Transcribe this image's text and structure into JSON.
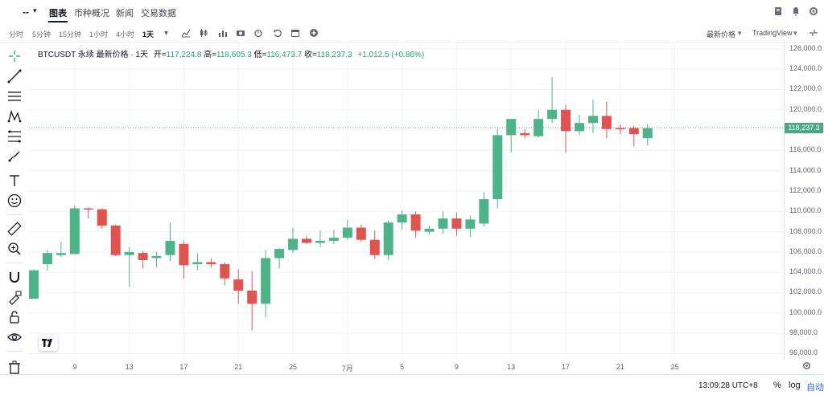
{
  "header": {
    "symbol_short": "--",
    "tabs": [
      {
        "label": "图表",
        "active": true
      },
      {
        "label": "币种概况",
        "active": false
      },
      {
        "label": "新闻",
        "active": false
      },
      {
        "label": "交易数据",
        "active": false
      }
    ],
    "right_icons": [
      "document-icon",
      "bell-icon",
      "settings-icon",
      "fullscreen-icon"
    ]
  },
  "toolbar": {
    "intervals": [
      "分时",
      "5分钟",
      "15分钟",
      "1小时",
      "4小时",
      "1天"
    ],
    "active_interval": "1天",
    "icons": [
      "indicators-icon",
      "candle-type-icon",
      "camera-icon",
      "alarm-icon",
      "undo-icon",
      "calendar-icon",
      "add-icon"
    ],
    "price_type": "最新价格",
    "provider": "TradingView"
  },
  "left_tools": [
    "crosshair-icon",
    "trend-line-icon",
    "horizontal-lines-icon",
    "pattern-icon",
    "fib-icon",
    "brush-icon",
    "text-icon",
    "emoji-icon",
    "ruler-icon",
    "zoom-icon",
    "magnet-icon",
    "lock-drawing-icon",
    "lock-icon",
    "eye-icon",
    "trash-icon"
  ],
  "legend": {
    "title": "BTCUSDT 永续 最新价格 · 1天",
    "open_label": "开=",
    "open": "117,224.8",
    "high_label": "高=",
    "high": "118,605.3",
    "low_label": "低=",
    "low": "116,473.7",
    "close_label": "收=",
    "close": "118,237.3",
    "change": "+1,012.5 (+0.86%)"
  },
  "last_price_tag": "118,237.3",
  "colors": {
    "up": "#4fb38a",
    "down": "#e0544f",
    "grid": "#f0f3fa",
    "last_line": "#4aa789"
  },
  "chart_data": {
    "type": "candlestick",
    "y_ticks": [
      "126,000.0",
      "124,000.0",
      "122,000.0",
      "120,000.0",
      "118,000.0",
      "116,000.0",
      "114,000.0",
      "112,000.0",
      "110,000.0",
      "108,000.0",
      "106,000.0",
      "104,000.0",
      "102,000.0",
      "100,000.0",
      "98,000.0",
      "96,000.0"
    ],
    "ylim": [
      95400,
      126700
    ],
    "x_ticks": [
      "9",
      "13",
      "17",
      "21",
      "25",
      "7月",
      "5",
      "9",
      "13",
      "17",
      "21",
      "25"
    ],
    "candles": [
      {
        "o": 101400,
        "h": 104300,
        "l": 101400,
        "c": 104200
      },
      {
        "o": 104800,
        "h": 106200,
        "l": 104200,
        "c": 105900
      },
      {
        "o": 105700,
        "h": 107000,
        "l": 105500,
        "c": 105900
      },
      {
        "o": 105800,
        "h": 110600,
        "l": 105800,
        "c": 110300
      },
      {
        "o": 110300,
        "h": 110400,
        "l": 109300,
        "c": 110200
      },
      {
        "o": 110200,
        "h": 110300,
        "l": 108300,
        "c": 108600
      },
      {
        "o": 108600,
        "h": 108700,
        "l": 105600,
        "c": 105700
      },
      {
        "o": 105700,
        "h": 106500,
        "l": 102600,
        "c": 106000
      },
      {
        "o": 105900,
        "h": 106100,
        "l": 104400,
        "c": 105200
      },
      {
        "o": 105400,
        "h": 106000,
        "l": 104500,
        "c": 105600
      },
      {
        "o": 105700,
        "h": 108900,
        "l": 105100,
        "c": 107100
      },
      {
        "o": 106800,
        "h": 107100,
        "l": 103400,
        "c": 104700
      },
      {
        "o": 104800,
        "h": 105900,
        "l": 104200,
        "c": 105000
      },
      {
        "o": 105000,
        "h": 105400,
        "l": 104500,
        "c": 104800
      },
      {
        "o": 104800,
        "h": 105000,
        "l": 102700,
        "c": 103400
      },
      {
        "o": 103300,
        "h": 104300,
        "l": 100900,
        "c": 102200
      },
      {
        "o": 102200,
        "h": 104100,
        "l": 98300,
        "c": 100900
      },
      {
        "o": 100900,
        "h": 106200,
        "l": 99600,
        "c": 105400
      },
      {
        "o": 105400,
        "h": 106400,
        "l": 104400,
        "c": 106300
      },
      {
        "o": 106200,
        "h": 108400,
        "l": 105900,
        "c": 107300
      },
      {
        "o": 107300,
        "h": 107600,
        "l": 106800,
        "c": 106900
      },
      {
        "o": 106900,
        "h": 108100,
        "l": 106500,
        "c": 107100
      },
      {
        "o": 107100,
        "h": 108200,
        "l": 106800,
        "c": 107400
      },
      {
        "o": 107400,
        "h": 109200,
        "l": 107200,
        "c": 108400
      },
      {
        "o": 108400,
        "h": 108700,
        "l": 107000,
        "c": 107200
      },
      {
        "o": 107200,
        "h": 108100,
        "l": 105300,
        "c": 105700
      },
      {
        "o": 105700,
        "h": 109100,
        "l": 105200,
        "c": 108900
      },
      {
        "o": 108900,
        "h": 110100,
        "l": 108200,
        "c": 109700
      },
      {
        "o": 109700,
        "h": 110000,
        "l": 107400,
        "c": 108100
      },
      {
        "o": 108000,
        "h": 108600,
        "l": 107700,
        "c": 108300
      },
      {
        "o": 108300,
        "h": 110000,
        "l": 107800,
        "c": 109300
      },
      {
        "o": 109300,
        "h": 109900,
        "l": 107600,
        "c": 108300
      },
      {
        "o": 108300,
        "h": 109600,
        "l": 107500,
        "c": 109200
      },
      {
        "o": 108800,
        "h": 111900,
        "l": 108500,
        "c": 111200
      },
      {
        "o": 111200,
        "h": 118100,
        "l": 110300,
        "c": 117500
      },
      {
        "o": 117500,
        "h": 119000,
        "l": 115800,
        "c": 119100
      },
      {
        "o": 117700,
        "h": 118100,
        "l": 117200,
        "c": 117500
      },
      {
        "o": 117400,
        "h": 120000,
        "l": 117300,
        "c": 119100
      },
      {
        "o": 119100,
        "h": 123200,
        "l": 118700,
        "c": 120000
      },
      {
        "o": 120000,
        "h": 120500,
        "l": 115800,
        "c": 117900
      },
      {
        "o": 117900,
        "h": 119500,
        "l": 117500,
        "c": 118700
      },
      {
        "o": 118700,
        "h": 121000,
        "l": 117700,
        "c": 119400
      },
      {
        "o": 119400,
        "h": 120800,
        "l": 117200,
        "c": 118100
      },
      {
        "o": 118200,
        "h": 118600,
        "l": 117600,
        "c": 118100
      },
      {
        "o": 118200,
        "h": 118400,
        "l": 116400,
        "c": 117600
      },
      {
        "o": 117200,
        "h": 118600,
        "l": 116500,
        "c": 118200
      }
    ]
  },
  "bottom": {
    "clock": "13:09:28 UTC+8",
    "percent": "%",
    "log": "log",
    "auto": "自动"
  }
}
